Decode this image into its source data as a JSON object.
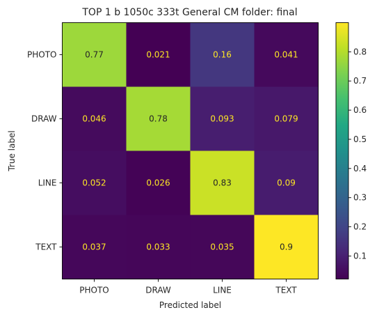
{
  "chart_data": {
    "type": "heatmap",
    "title": "TOP 1 b 1050c 333t  General CM folder: final",
    "xlabel": "Predicted label",
    "ylabel": "True label",
    "x_categories": [
      "PHOTO",
      "DRAW",
      "LINE",
      "TEXT"
    ],
    "y_categories": [
      "PHOTO",
      "DRAW",
      "LINE",
      "TEXT"
    ],
    "values": [
      [
        0.77,
        0.021,
        0.16,
        0.041
      ],
      [
        0.046,
        0.78,
        0.093,
        0.079
      ],
      [
        0.052,
        0.026,
        0.83,
        0.09
      ],
      [
        0.037,
        0.033,
        0.035,
        0.9
      ]
    ],
    "value_labels": [
      [
        "0.77",
        "0.021",
        "0.16",
        "0.041"
      ],
      [
        "0.046",
        "0.78",
        "0.093",
        "0.079"
      ],
      [
        "0.052",
        "0.026",
        "0.83",
        "0.09"
      ],
      [
        "0.037",
        "0.033",
        "0.035",
        "0.9"
      ]
    ],
    "colormap": "viridis",
    "colorbar": {
      "range": [
        0.021,
        0.9
      ],
      "ticks": [
        0.1,
        0.2,
        0.3,
        0.4,
        0.5,
        0.6,
        0.7,
        0.8
      ],
      "tick_labels": [
        "0.1",
        "0.2",
        "0.3",
        "0.4",
        "0.5",
        "0.6",
        "0.7",
        "0.8"
      ]
    },
    "text_colors": {
      "on_dark": "#fde725",
      "on_light": "#262626"
    },
    "grid": false
  }
}
